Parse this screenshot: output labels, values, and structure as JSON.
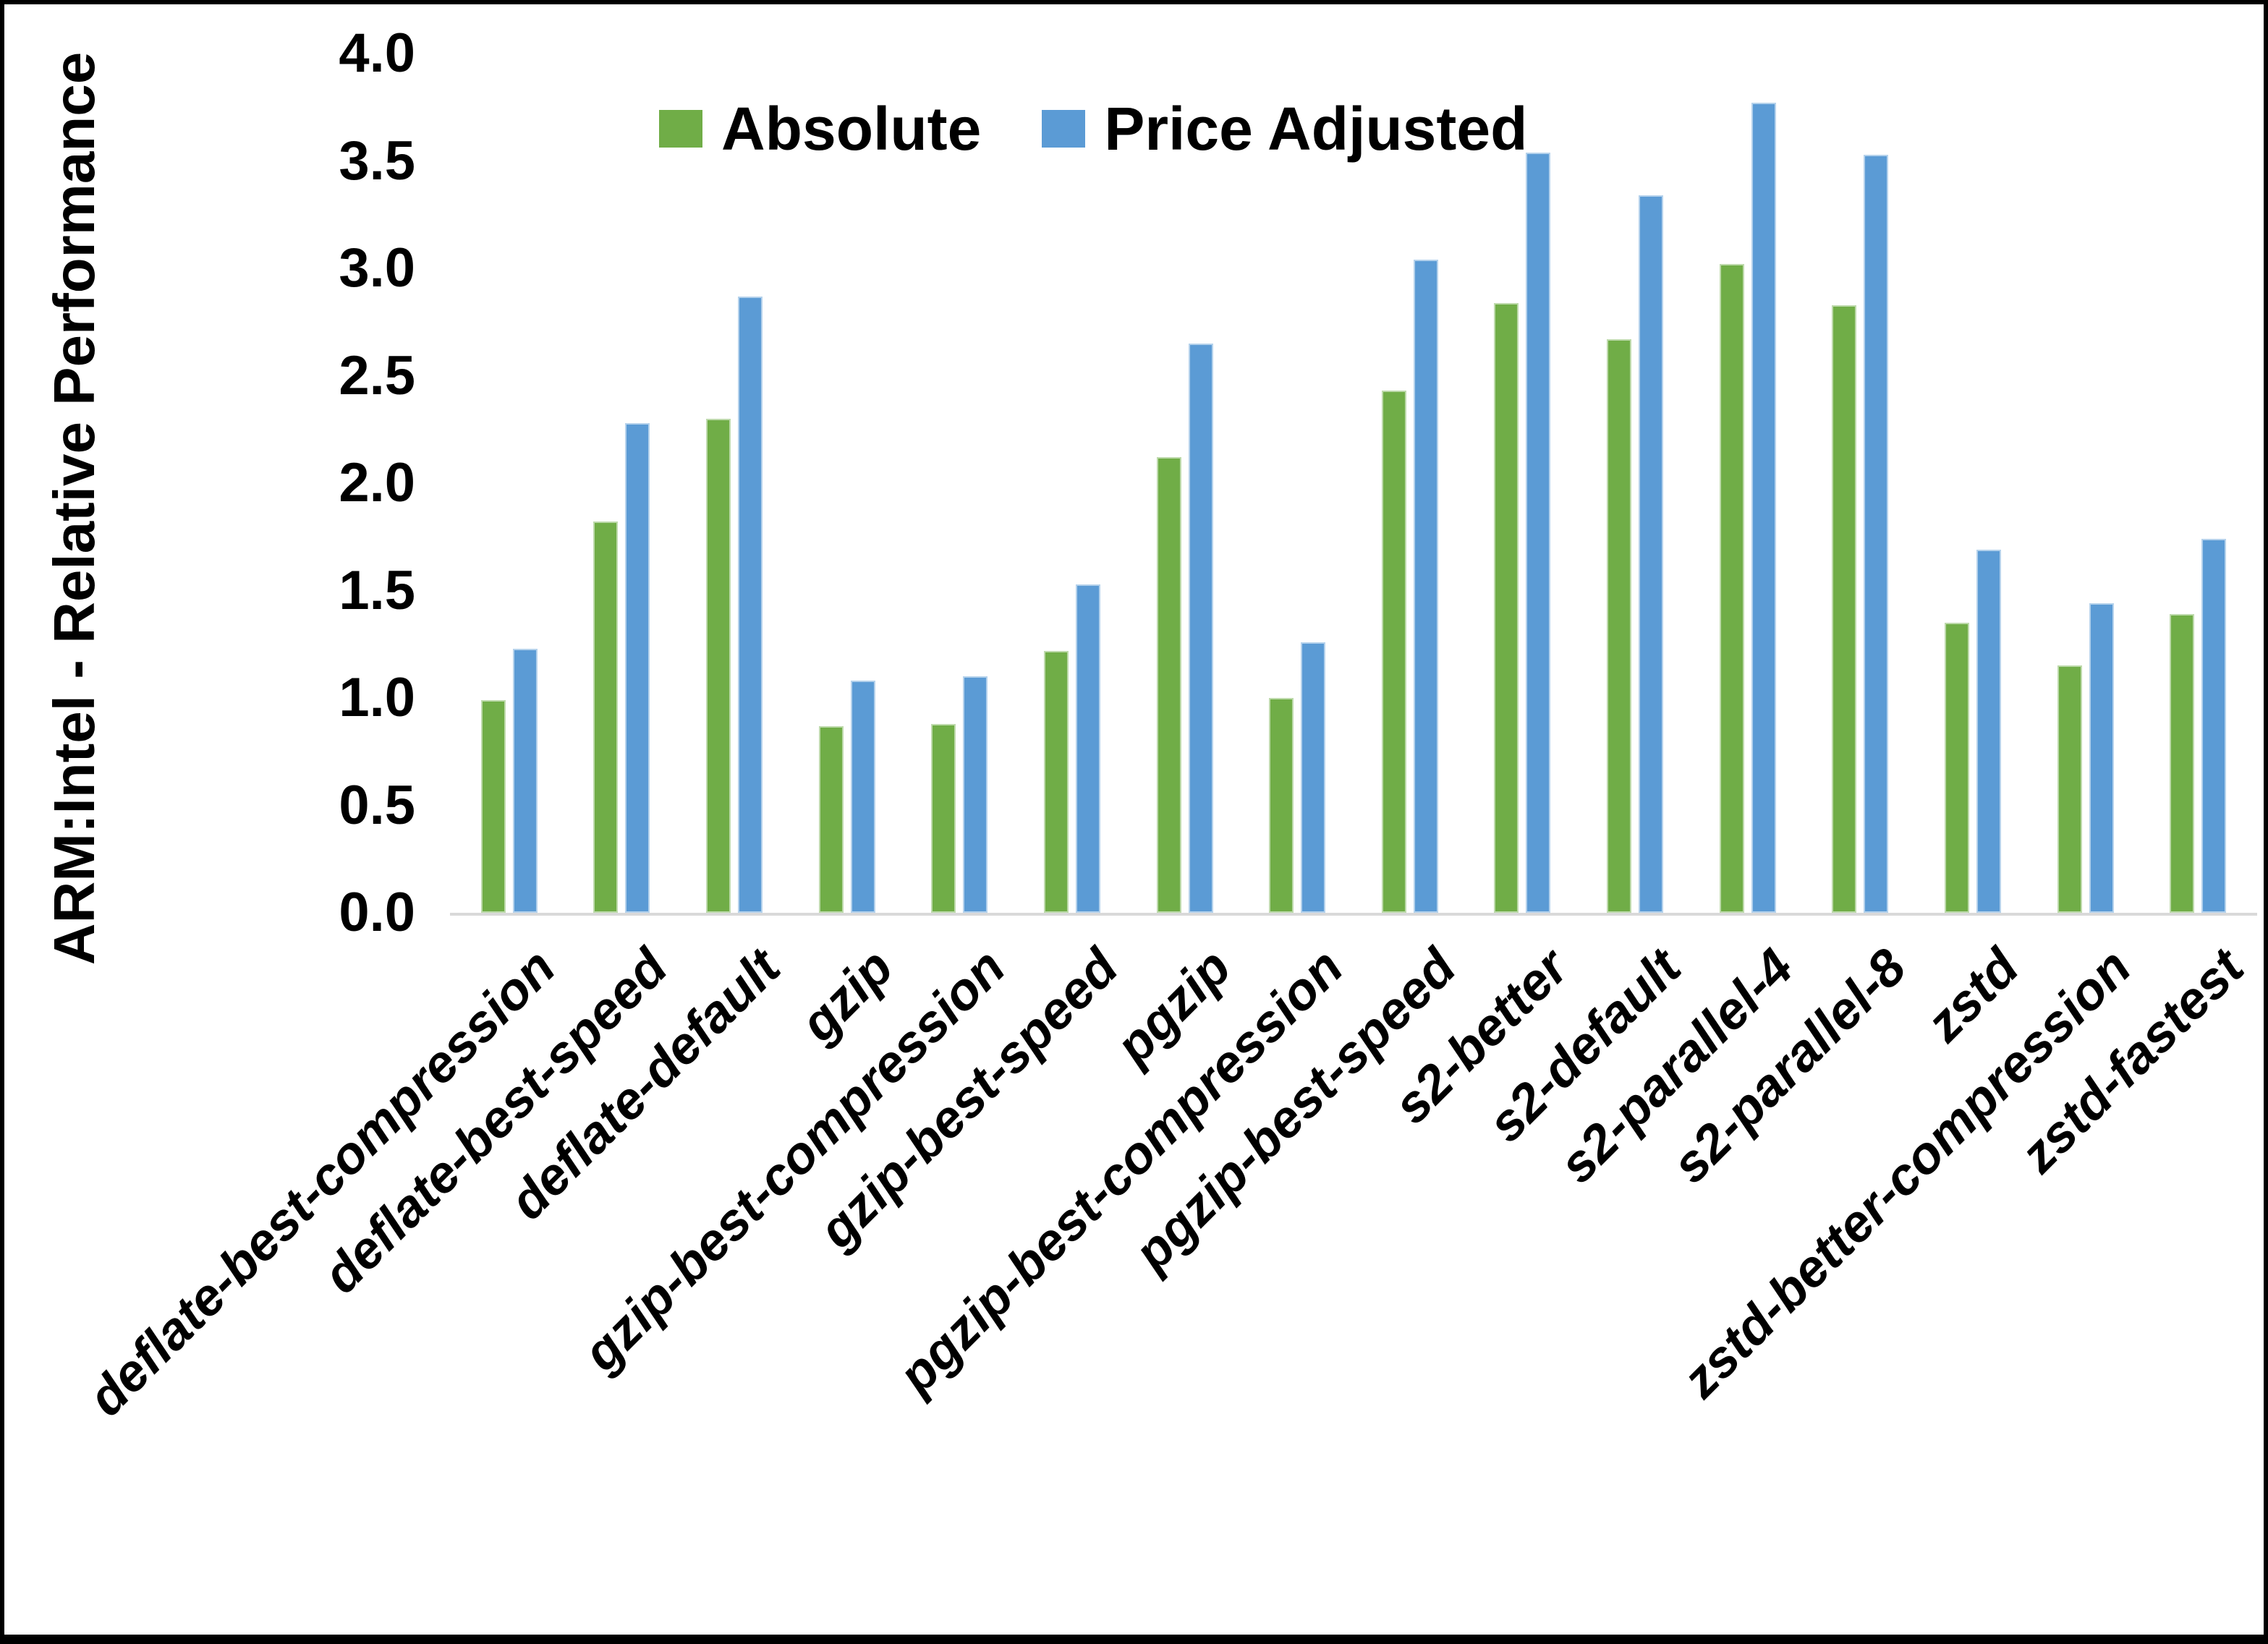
{
  "chart_data": {
    "type": "bar",
    "title": "",
    "xlabel": "",
    "ylabel": "ARM:Intel - Relative Performance",
    "ylim": [
      0.0,
      4.0
    ],
    "ytick_step": 0.5,
    "ytick_labels": [
      "0.0",
      "0.5",
      "1.0",
      "1.5",
      "2.0",
      "2.5",
      "3.0",
      "3.5",
      "4.0"
    ],
    "grid": false,
    "legend_position": "top-center",
    "categories": [
      "deflate-best-compression",
      "deflate-best-speed",
      "deflate-default",
      "gzip",
      "gzip-best-compression",
      "gzip-best-speed",
      "pgzip",
      "pgzip-best-compression",
      "pgzip-best-speed",
      "s2-better",
      "s2-default",
      "s2-parallel-4",
      "s2-parallel-8",
      "zstd",
      "zstd-better-compression",
      "zstd-fastest"
    ],
    "series": [
      {
        "name": "Absolute",
        "color": "#70AD47",
        "values": [
          0.99,
          1.82,
          2.3,
          0.87,
          0.88,
          1.22,
          2.12,
          1.0,
          2.43,
          2.84,
          2.67,
          3.02,
          2.83,
          1.35,
          1.15,
          1.39
        ]
      },
      {
        "name": "Price Adjusted",
        "color": "#5B9BD5",
        "values": [
          1.23,
          2.28,
          2.87,
          1.08,
          1.1,
          1.53,
          2.65,
          1.26,
          3.04,
          3.54,
          3.34,
          3.77,
          3.53,
          1.69,
          1.44,
          1.74
        ]
      }
    ]
  },
  "colors": {
    "background": "#FFFFFF",
    "frame_border": "#000000",
    "axis_baseline": "#D9D9D9",
    "text": "#000000"
  }
}
